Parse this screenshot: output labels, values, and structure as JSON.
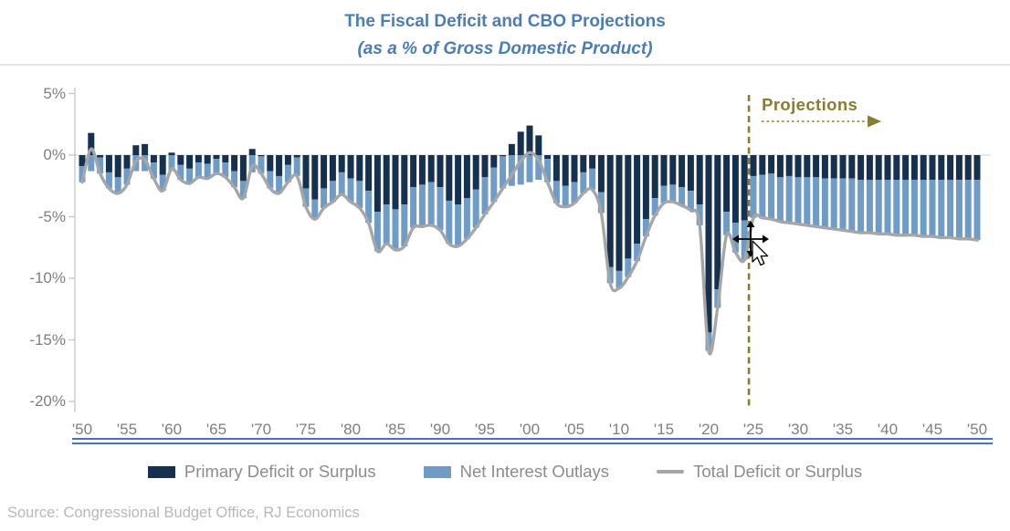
{
  "header": {
    "title": "The Fiscal Deficit and CBO Projections",
    "subtitle": "(as a % of Gross Domestic Product)"
  },
  "annotation": {
    "label": "Projections",
    "divider_year": 2024.5,
    "color": "#8a7b2f"
  },
  "axis": {
    "y_ticks": [
      {
        "label": "5%",
        "value": 5
      },
      {
        "label": "0%",
        "value": 0
      },
      {
        "label": "-5%",
        "value": -5
      },
      {
        "label": "-10%",
        "value": -10
      },
      {
        "label": "-15%",
        "value": -15
      },
      {
        "label": "-20%",
        "value": -20
      }
    ],
    "x_ticks": [
      {
        "label": "'50",
        "year": 1950
      },
      {
        "label": "'55",
        "year": 1955
      },
      {
        "label": "'60",
        "year": 1960
      },
      {
        "label": "'65",
        "year": 1965
      },
      {
        "label": "'70",
        "year": 1970
      },
      {
        "label": "'75",
        "year": 1975
      },
      {
        "label": "'80",
        "year": 1980
      },
      {
        "label": "'85",
        "year": 1985
      },
      {
        "label": "'90",
        "year": 1990
      },
      {
        "label": "'95",
        "year": 1995
      },
      {
        "label": "'00",
        "year": 2000
      },
      {
        "label": "'05",
        "year": 2005
      },
      {
        "label": "'10",
        "year": 2010
      },
      {
        "label": "'15",
        "year": 2015
      },
      {
        "label": "'20",
        "year": 2020
      },
      {
        "label": "'25",
        "year": 2025
      },
      {
        "label": "'30",
        "year": 2030
      },
      {
        "label": "'35",
        "year": 2035
      },
      {
        "label": "'40",
        "year": 2040
      },
      {
        "label": "'45",
        "year": 2045
      },
      {
        "label": "'50",
        "year": 2050
      }
    ]
  },
  "legend": {
    "items": [
      {
        "label": "Primary Deficit or Surplus",
        "marker": "bar",
        "color": "#16314f"
      },
      {
        "label": "Net Interest Outlays",
        "marker": "bar",
        "color": "#6f9bc7"
      },
      {
        "label": "Total Deficit or Surplus",
        "marker": "line",
        "color": "#a6a6a6"
      }
    ]
  },
  "source": "Source: Congressional Budget Office, RJ Economics",
  "colors": {
    "title": "#4a7db5",
    "primary_bar": "#16314f",
    "interest_bar": "#6f9bc7",
    "total_line": "#a6a6a6",
    "annotation": "#8a7b2f",
    "axis_line": "#c6c6c6",
    "zero_gridline": "#d9d9d9",
    "underline": "#4472c4",
    "axis_labels": "#7f7f7f",
    "legend_text": "#8c8c8c",
    "source_text": "#b8b8b8"
  },
  "chart_data": {
    "type": "bar",
    "subtype": "stacked-bars-with-smoothed-line",
    "title": "The Fiscal Deficit and CBO Projections",
    "subtitle": "(as a % of Gross Domestic Product)",
    "xlabel": "",
    "ylabel": "",
    "ylim": [
      -20,
      5
    ],
    "x_range": [
      1950,
      2050
    ],
    "grid": false,
    "legend_position": "bottom",
    "projections_start": 2025,
    "years": [
      1950,
      1951,
      1952,
      1953,
      1954,
      1955,
      1956,
      1957,
      1958,
      1959,
      1960,
      1961,
      1962,
      1963,
      1964,
      1965,
      1966,
      1967,
      1968,
      1969,
      1970,
      1971,
      1972,
      1973,
      1974,
      1975,
      1976,
      1977,
      1978,
      1979,
      1980,
      1981,
      1982,
      1983,
      1984,
      1985,
      1986,
      1987,
      1988,
      1989,
      1990,
      1991,
      1992,
      1993,
      1994,
      1995,
      1996,
      1997,
      1998,
      1999,
      2000,
      2001,
      2002,
      2003,
      2004,
      2005,
      2006,
      2007,
      2008,
      2009,
      2010,
      2011,
      2012,
      2013,
      2014,
      2015,
      2016,
      2017,
      2018,
      2019,
      2020,
      2021,
      2022,
      2023,
      2024,
      2025,
      2026,
      2027,
      2028,
      2029,
      2030,
      2031,
      2032,
      2033,
      2034,
      2035,
      2036,
      2037,
      2038,
      2039,
      2040,
      2041,
      2042,
      2043,
      2044,
      2045,
      2046,
      2047,
      2048,
      2049,
      2050
    ],
    "series": [
      {
        "name": "Primary Deficit or Surplus",
        "type": "bar",
        "stack": true,
        "color": "#16314f",
        "values": [
          -0.9,
          1.8,
          -0.2,
          -1.4,
          -1.8,
          -1.1,
          0.8,
          0.9,
          -0.6,
          -1.6,
          0.2,
          -0.8,
          -1.1,
          -0.6,
          -0.7,
          -0.3,
          -0.6,
          -1.3,
          -2.1,
          0.5,
          -0.1,
          -1.3,
          -1.7,
          -0.8,
          -0.2,
          -2.7,
          -3.6,
          -2.7,
          -2.1,
          -1.4,
          -1.9,
          -2.1,
          -2.9,
          -4.6,
          -4.0,
          -4.4,
          -4.0,
          -2.6,
          -2.4,
          -2.2,
          -2.6,
          -3.7,
          -4.0,
          -3.5,
          -2.8,
          -1.8,
          -1.0,
          -0.1,
          0.9,
          1.9,
          2.4,
          1.6,
          -0.3,
          -2.1,
          -2.5,
          -2.2,
          -1.4,
          -1.1,
          -3.0,
          -9.1,
          -9.4,
          -8.4,
          -7.2,
          -5.2,
          -3.5,
          -2.5,
          -2.4,
          -2.6,
          -2.9,
          -4.0,
          -14.4,
          -10.9,
          -4.6,
          -5.5,
          -5.3,
          -1.7,
          -1.6,
          -1.5,
          -1.8,
          -1.7,
          -1.8,
          -1.8,
          -1.8,
          -1.9,
          -1.9,
          -1.9,
          -1.9,
          -2.0,
          -2.0,
          -2.0,
          -2.0,
          -2.0,
          -2.0,
          -2.0,
          -2.0,
          -2.0,
          -2.0,
          -2.0,
          -2.0,
          -2.0,
          -2.0
        ]
      },
      {
        "name": "Net Interest Outlays",
        "type": "bar",
        "stack": true,
        "color": "#6f9bc7",
        "values": [
          -1.3,
          -1.3,
          -1.3,
          -1.3,
          -1.3,
          -1.3,
          -1.3,
          -1.3,
          -1.3,
          -1.3,
          -1.3,
          -1.2,
          -1.2,
          -1.2,
          -1.2,
          -1.2,
          -1.2,
          -1.3,
          -1.4,
          -1.4,
          -1.4,
          -1.4,
          -1.4,
          -1.4,
          -1.5,
          -1.5,
          -1.6,
          -1.6,
          -1.7,
          -1.8,
          -1.9,
          -2.2,
          -2.6,
          -3.2,
          -3.2,
          -3.3,
          -3.4,
          -3.3,
          -3.4,
          -3.5,
          -3.5,
          -3.5,
          -3.4,
          -3.3,
          -3.1,
          -3.0,
          -2.8,
          -2.6,
          -2.5,
          -2.4,
          -2.2,
          -2.0,
          -1.9,
          -1.8,
          -1.7,
          -1.7,
          -1.7,
          -1.7,
          -1.7,
          -1.3,
          -1.4,
          -1.5,
          -1.4,
          -1.4,
          -1.4,
          -1.4,
          -1.4,
          -1.5,
          -1.6,
          -1.7,
          -1.5,
          -1.5,
          -1.9,
          -2.4,
          -3.2,
          -3.4,
          -3.5,
          -3.7,
          -3.6,
          -3.8,
          -3.8,
          -3.9,
          -4.0,
          -4.0,
          -4.1,
          -4.2,
          -4.3,
          -4.3,
          -4.3,
          -4.4,
          -4.4,
          -4.5,
          -4.5,
          -4.5,
          -4.6,
          -4.6,
          -4.7,
          -4.7,
          -4.8,
          -4.8,
          -4.9
        ]
      },
      {
        "name": "Total Deficit or Surplus",
        "type": "line",
        "color": "#a6a6a6",
        "values": [
          -2.2,
          0.5,
          -1.5,
          -2.7,
          -3.1,
          -2.4,
          -0.5,
          -0.4,
          -1.9,
          -2.9,
          -1.1,
          -2.0,
          -2.3,
          -1.8,
          -1.9,
          -1.5,
          -1.8,
          -2.6,
          -3.5,
          -0.9,
          -1.5,
          -2.7,
          -3.1,
          -2.2,
          -1.7,
          -4.2,
          -5.2,
          -4.3,
          -3.8,
          -3.2,
          -3.8,
          -4.3,
          -5.5,
          -7.8,
          -7.2,
          -7.7,
          -7.4,
          -5.9,
          -5.8,
          -5.7,
          -6.1,
          -7.2,
          -7.4,
          -6.8,
          -5.9,
          -4.8,
          -3.8,
          -2.7,
          -1.6,
          -0.5,
          0.2,
          -0.4,
          -2.2,
          -3.9,
          -4.2,
          -3.9,
          -3.1,
          -2.8,
          -4.7,
          -10.4,
          -10.8,
          -9.9,
          -8.6,
          -6.6,
          -4.9,
          -3.9,
          -3.8,
          -4.1,
          -4.5,
          -5.7,
          -15.9,
          -12.4,
          -6.5,
          -7.9,
          -8.5,
          -5.1,
          -5.1,
          -5.2,
          -5.4,
          -5.5,
          -5.6,
          -5.7,
          -5.8,
          -5.9,
          -6.0,
          -6.1,
          -6.2,
          -6.3,
          -6.3,
          -6.4,
          -6.4,
          -6.5,
          -6.5,
          -6.5,
          -6.6,
          -6.6,
          -6.7,
          -6.7,
          -6.8,
          -6.8,
          -6.9
        ]
      }
    ]
  }
}
